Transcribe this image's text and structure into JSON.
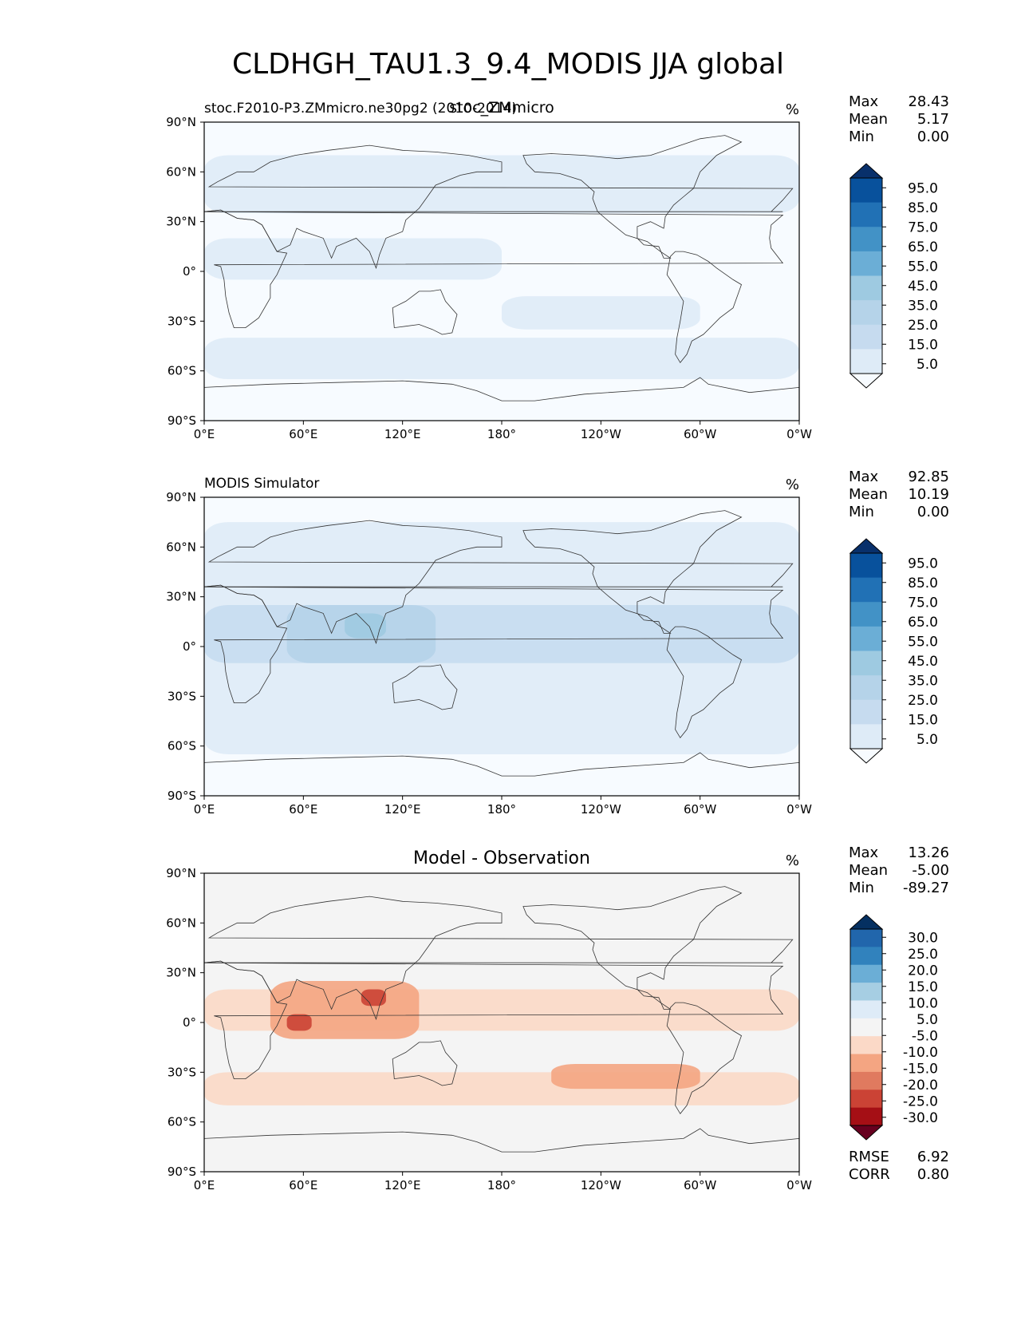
{
  "figure_title": "CLDHGH_TAU1.3_9.4_MODIS JJA global",
  "x_ticks": [
    "0°E",
    "60°E",
    "120°E",
    "180°",
    "120°W",
    "60°W",
    "0°W"
  ],
  "y_ticks": [
    "90°N",
    "60°N",
    "30°N",
    "0°",
    "30°S",
    "60°S",
    "90°S"
  ],
  "colors": {
    "blues": [
      "#f7fbff",
      "#deebf7",
      "#c6dbef",
      "#b5d3e9",
      "#9ecae1",
      "#6baed6",
      "#4292c6",
      "#2171b5",
      "#08519c",
      "#08306b"
    ],
    "diverging": [
      "#67001f",
      "#a50f15",
      "#cb4335",
      "#e07a5f",
      "#f4a582",
      "#fbd9c7",
      "#f4f4f4",
      "#deebf7",
      "#a6cee3",
      "#6baed6",
      "#3182bd",
      "#2166ac",
      "#053061"
    ],
    "land_outline": "#333333"
  },
  "chart_data": [
    {
      "type": "heatmap",
      "title": "stoc_ZMmicro",
      "subtitle_left": "stoc.F2010-P3.ZMmicro.ne30pg2 (2010-2014)",
      "units": "%",
      "stats": [
        {
          "label": "Max",
          "value": "28.43"
        },
        {
          "label": "Mean",
          "value": "5.17"
        },
        {
          "label": "Min",
          "value": "0.00"
        }
      ],
      "colorbar_ticks": [
        "95.0",
        "85.0",
        "75.0",
        "65.0",
        "55.0",
        "45.0",
        "35.0",
        "25.0",
        "15.0",
        "5.0"
      ],
      "colorbar_extend": "both",
      "palette": "blues",
      "regions": [
        {
          "name": "northern-band",
          "lon": [
            0,
            360
          ],
          "lat": [
            35,
            70
          ],
          "level": 1
        },
        {
          "name": "tropical-indian-pacific",
          "lon": [
            0,
            180
          ],
          "lat": [
            -5,
            20
          ],
          "level": 1
        },
        {
          "name": "southern-ocean",
          "lon": [
            0,
            360
          ],
          "lat": [
            -65,
            -40
          ],
          "level": 1
        },
        {
          "name": "south-pacific-band",
          "lon": [
            180,
            300
          ],
          "lat": [
            -35,
            -15
          ],
          "level": 1
        }
      ],
      "stats_extra": [],
      "xlim": [
        0,
        360
      ],
      "ylim": [
        -90,
        90
      ]
    },
    {
      "type": "heatmap",
      "title": "",
      "subtitle_left": "MODIS Simulator",
      "units": "%",
      "stats": [
        {
          "label": "Max",
          "value": "92.85"
        },
        {
          "label": "Mean",
          "value": "10.19"
        },
        {
          "label": "Min",
          "value": "0.00"
        }
      ],
      "colorbar_ticks": [
        "95.0",
        "85.0",
        "75.0",
        "65.0",
        "55.0",
        "45.0",
        "35.0",
        "25.0",
        "15.0",
        "5.0"
      ],
      "colorbar_extend": "both",
      "palette": "blues",
      "regions": [
        {
          "name": "global-background",
          "lon": [
            0,
            360
          ],
          "lat": [
            -65,
            75
          ],
          "level": 1
        },
        {
          "name": "tropics",
          "lon": [
            0,
            360
          ],
          "lat": [
            -10,
            25
          ],
          "level": 2
        },
        {
          "name": "indian-ocean-maritime",
          "lon": [
            50,
            140
          ],
          "lat": [
            -10,
            25
          ],
          "level": 3
        },
        {
          "name": "bay-of-bengal",
          "lon": [
            85,
            110
          ],
          "lat": [
            5,
            20
          ],
          "level": 4
        }
      ],
      "stats_extra": [],
      "xlim": [
        0,
        360
      ],
      "ylim": [
        -90,
        90
      ]
    },
    {
      "type": "heatmap",
      "title": "Model - Observation",
      "subtitle_left": "",
      "units": "%",
      "stats": [
        {
          "label": "Max",
          "value": "13.26"
        },
        {
          "label": "Mean",
          "value": "-5.00"
        },
        {
          "label": "Min",
          "value": "-89.27"
        }
      ],
      "colorbar_ticks": [
        "30.0",
        "25.0",
        "20.0",
        "15.0",
        "10.0",
        "5.0",
        "-5.0",
        "-10.0",
        "-15.0",
        "-20.0",
        "-25.0",
        "-30.0"
      ],
      "colorbar_extend": "both",
      "palette": "diverging",
      "regions": [
        {
          "name": "tropical-band",
          "lon": [
            0,
            360
          ],
          "lat": [
            -5,
            20
          ],
          "level": 5
        },
        {
          "name": "southern-band",
          "lon": [
            0,
            360
          ],
          "lat": [
            -50,
            -30
          ],
          "level": 5
        },
        {
          "name": "indian-ocean-deficit",
          "lon": [
            40,
            130
          ],
          "lat": [
            -10,
            25
          ],
          "level": 4
        },
        {
          "name": "arabian-sea-core",
          "lon": [
            50,
            65
          ],
          "lat": [
            -5,
            5
          ],
          "level": 2
        },
        {
          "name": "bay-of-bengal-core",
          "lon": [
            95,
            110
          ],
          "lat": [
            10,
            20
          ],
          "level": 2
        },
        {
          "name": "south-pacific-deficit",
          "lon": [
            210,
            300
          ],
          "lat": [
            -40,
            -25
          ],
          "level": 4
        }
      ],
      "stats_extra": [
        {
          "label": "RMSE",
          "value": "6.92"
        },
        {
          "label": "CORR",
          "value": "0.80"
        }
      ],
      "xlim": [
        0,
        360
      ],
      "ylim": [
        -90,
        90
      ]
    }
  ]
}
